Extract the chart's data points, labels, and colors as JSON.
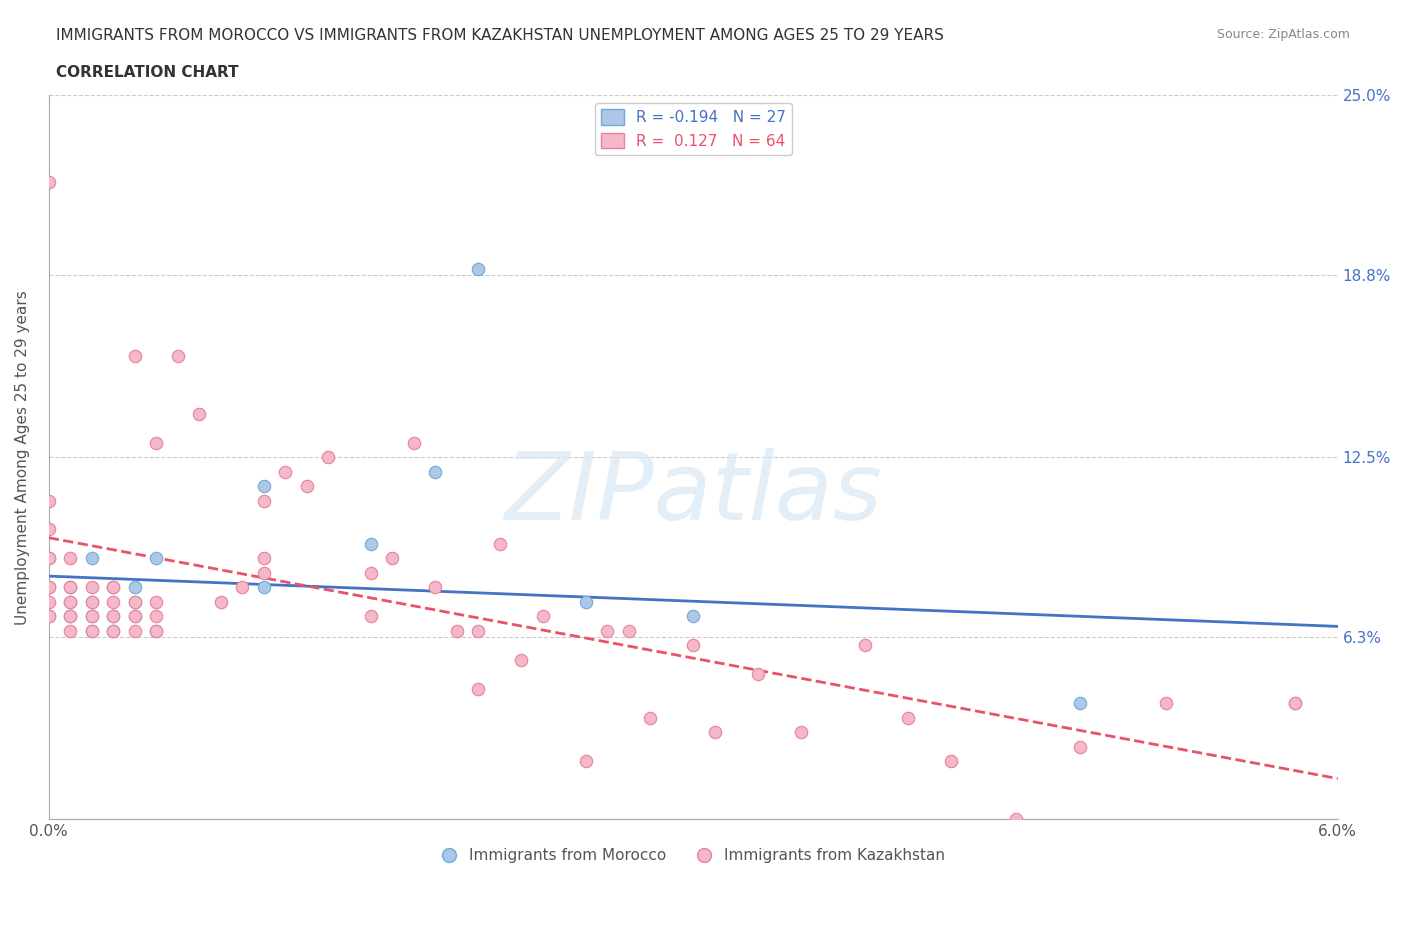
{
  "title_line1": "IMMIGRANTS FROM MOROCCO VS IMMIGRANTS FROM KAZAKHSTAN UNEMPLOYMENT AMONG AGES 25 TO 29 YEARS",
  "title_line2": "CORRELATION CHART",
  "source_text": "Source: ZipAtlas.com",
  "ylabel": "Unemployment Among Ages 25 to 29 years",
  "xlim": [
    0.0,
    0.06
  ],
  "ylim": [
    0.0,
    0.25
  ],
  "xtick_vals": [
    0.0,
    0.01,
    0.02,
    0.03,
    0.04,
    0.05,
    0.06
  ],
  "xtick_labels": [
    "0.0%",
    "",
    "",
    "",
    "",
    "",
    "6.0%"
  ],
  "ytick_vals": [
    0.0,
    0.063,
    0.125,
    0.188,
    0.25
  ],
  "ytick_labels": [
    "",
    "6.3%",
    "12.5%",
    "18.8%",
    "25.0%"
  ],
  "morocco_color": "#aec6e8",
  "morocco_edge": "#6aaed6",
  "kazakhstan_color": "#f4b8c8",
  "kazakhstan_edge": "#e8829a",
  "morocco_R": -0.194,
  "morocco_N": 27,
  "kazakhstan_R": 0.127,
  "kazakhstan_N": 64,
  "morocco_line_color": "#4472c4",
  "kazakhstan_line_color": "#e8536a",
  "grid_color": "#cccccc",
  "background_color": "#ffffff",
  "watermark_color": "#d8e8f5",
  "morocco_x": [
    0.0,
    0.0,
    0.0,
    0.001,
    0.001,
    0.001,
    0.002,
    0.002,
    0.002,
    0.002,
    0.003,
    0.003,
    0.003,
    0.004,
    0.004,
    0.004,
    0.005,
    0.005,
    0.01,
    0.01,
    0.015,
    0.018,
    0.02,
    0.025,
    0.03,
    0.048,
    0.058
  ],
  "morocco_y": [
    0.07,
    0.08,
    0.09,
    0.07,
    0.075,
    0.08,
    0.065,
    0.07,
    0.075,
    0.09,
    0.065,
    0.07,
    0.08,
    0.07,
    0.075,
    0.08,
    0.065,
    0.09,
    0.115,
    0.08,
    0.095,
    0.12,
    0.19,
    0.075,
    0.07,
    0.04,
    0.04
  ],
  "kazakhstan_x": [
    0.0,
    0.0,
    0.0,
    0.0,
    0.0,
    0.0,
    0.0,
    0.001,
    0.001,
    0.001,
    0.001,
    0.001,
    0.002,
    0.002,
    0.002,
    0.002,
    0.003,
    0.003,
    0.003,
    0.003,
    0.004,
    0.004,
    0.004,
    0.004,
    0.005,
    0.005,
    0.005,
    0.005,
    0.006,
    0.007,
    0.008,
    0.009,
    0.01,
    0.01,
    0.01,
    0.011,
    0.012,
    0.013,
    0.015,
    0.015,
    0.016,
    0.017,
    0.018,
    0.019,
    0.02,
    0.02,
    0.021,
    0.022,
    0.023,
    0.025,
    0.026,
    0.027,
    0.028,
    0.03,
    0.031,
    0.033,
    0.035,
    0.038,
    0.04,
    0.042,
    0.045,
    0.048,
    0.052,
    0.058
  ],
  "kazakhstan_y": [
    0.07,
    0.075,
    0.08,
    0.09,
    0.1,
    0.11,
    0.22,
    0.065,
    0.07,
    0.075,
    0.08,
    0.09,
    0.065,
    0.07,
    0.075,
    0.08,
    0.065,
    0.07,
    0.075,
    0.08,
    0.065,
    0.07,
    0.075,
    0.16,
    0.065,
    0.07,
    0.075,
    0.13,
    0.16,
    0.14,
    0.075,
    0.08,
    0.085,
    0.09,
    0.11,
    0.12,
    0.115,
    0.125,
    0.07,
    0.085,
    0.09,
    0.13,
    0.08,
    0.065,
    0.045,
    0.065,
    0.095,
    0.055,
    0.07,
    0.02,
    0.065,
    0.065,
    0.035,
    0.06,
    0.03,
    0.05,
    0.03,
    0.06,
    0.035,
    0.02,
    0.0,
    0.025,
    0.04,
    0.04
  ]
}
